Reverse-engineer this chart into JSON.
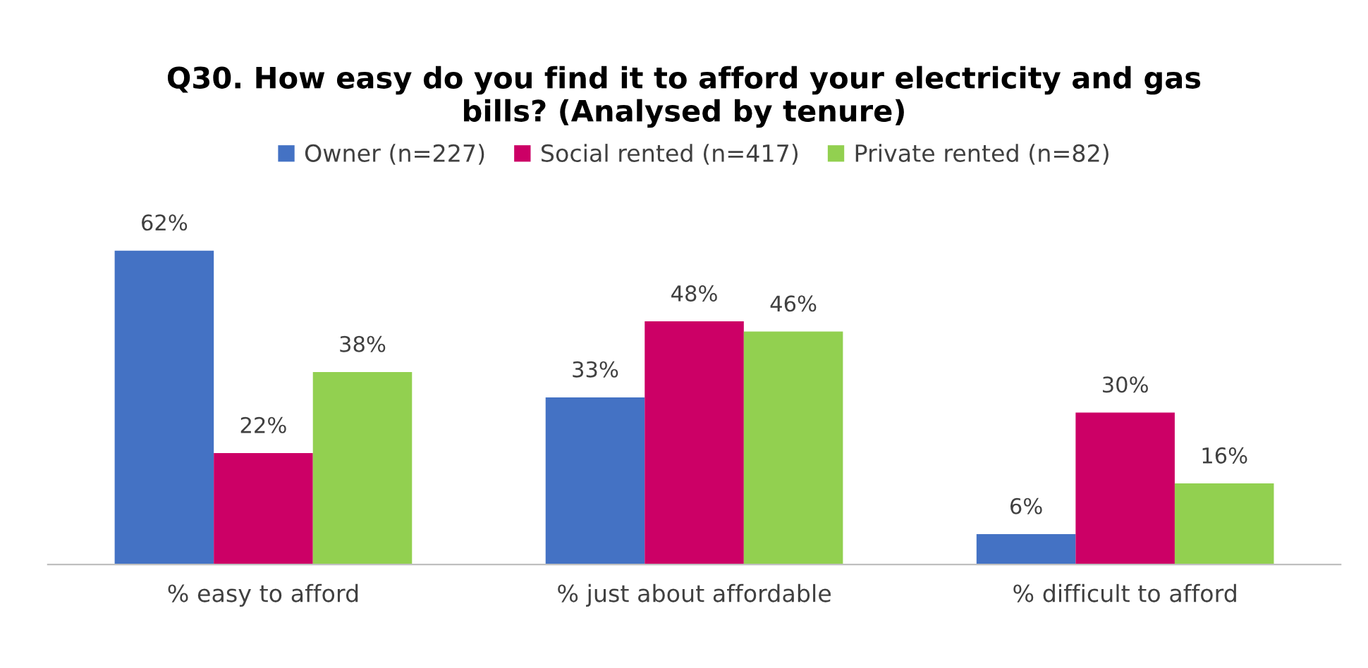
{
  "chart_data": {
    "type": "bar",
    "title": "Q30. How easy do you find it to afford your electricity and gas\nbills? (Analysed by tenure)",
    "categories": [
      "% easy to afford",
      "% just about affordable",
      "% difficult to afford"
    ],
    "series": [
      {
        "name": "Owner (n=227)",
        "color": "#4472c4",
        "values": [
          62,
          33,
          6
        ],
        "value_labels": [
          "62%",
          "33%",
          "6%"
        ]
      },
      {
        "name": "Social rented (n=417)",
        "color": "#cc0066",
        "values": [
          22,
          48,
          30
        ],
        "value_labels": [
          "22%",
          "48%",
          "30%"
        ]
      },
      {
        "name": "Private rented (n=82)",
        "color": "#92d050",
        "values": [
          38,
          46,
          16
        ],
        "value_labels": [
          "38%",
          "46%",
          "16%"
        ]
      }
    ],
    "legend": "top",
    "grid": false
  }
}
